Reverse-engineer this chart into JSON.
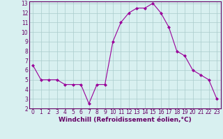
{
  "x": [
    0,
    1,
    2,
    3,
    4,
    5,
    6,
    7,
    8,
    9,
    10,
    11,
    12,
    13,
    14,
    15,
    16,
    17,
    18,
    19,
    20,
    21,
    22,
    23
  ],
  "y": [
    6.5,
    5.0,
    5.0,
    5.0,
    4.5,
    4.5,
    4.5,
    2.5,
    4.5,
    4.5,
    9.0,
    11.0,
    12.0,
    12.5,
    12.5,
    13.0,
    12.0,
    10.5,
    8.0,
    7.5,
    6.0,
    5.5,
    5.0,
    3.0
  ],
  "line_color": "#990099",
  "marker": "D",
  "marker_size": 2,
  "bg_color": "#d8f0f0",
  "grid_color": "#aacccc",
  "xlabel": "Windchill (Refroidissement éolien,°C)",
  "xlim": [
    -0.5,
    23.5
  ],
  "ylim": [
    2,
    13.2
  ],
  "yticks": [
    2,
    3,
    4,
    5,
    6,
    7,
    8,
    9,
    10,
    11,
    12,
    13
  ],
  "xticks": [
    0,
    1,
    2,
    3,
    4,
    5,
    6,
    7,
    8,
    9,
    10,
    11,
    12,
    13,
    14,
    15,
    16,
    17,
    18,
    19,
    20,
    21,
    22,
    23
  ],
  "tick_fontsize": 5.5,
  "xlabel_fontsize": 6.5,
  "spine_color": "#660066",
  "tick_color": "#660066"
}
